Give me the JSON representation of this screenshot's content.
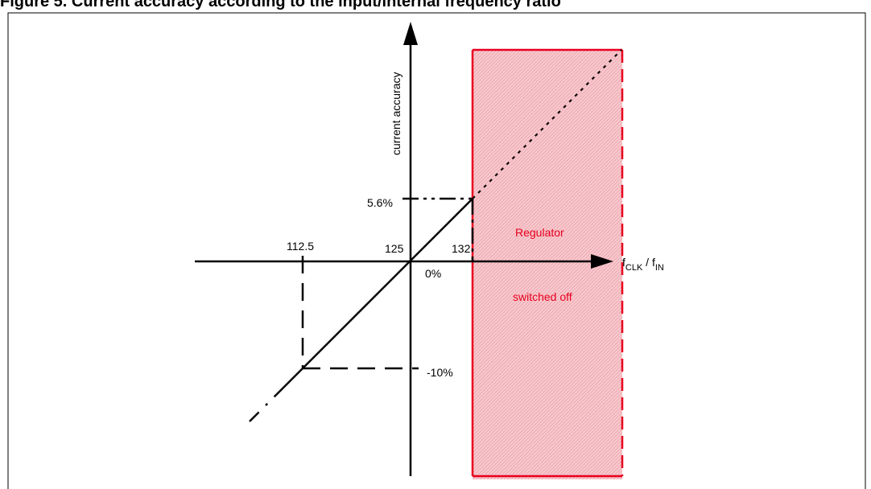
{
  "figure": {
    "title": "Figure 5. Current accuracy according to the input/internal frequency ratio"
  },
  "diagram": {
    "y_axis_label": "current accuracy",
    "x_axis_label_main": "f",
    "x_axis_label_sub1": "CLK",
    "x_axis_label_sep": " / f",
    "x_axis_label_sub2": "IN",
    "tick_labels": {
      "x_112_5": "112.5",
      "x_125": "125",
      "x_132": "132",
      "y_5_6": "5.6%",
      "y_0": "0%",
      "y_minus_10": "-10%"
    },
    "region": {
      "line1": "Regulator",
      "line2": "switched off",
      "color": "#e8001e",
      "fill": "#f4b8bf"
    }
  }
}
